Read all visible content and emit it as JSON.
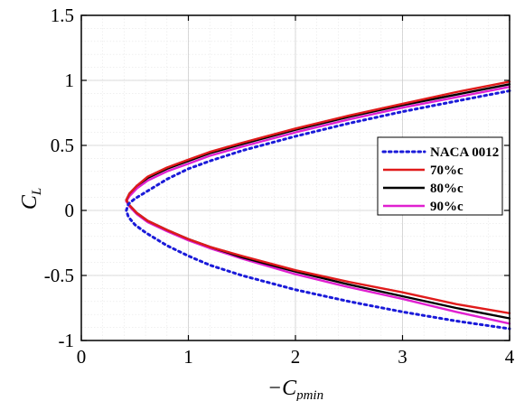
{
  "chart_data": {
    "type": "line",
    "xlabel": "−C",
    "xlabel_sub": "pmin",
    "ylabel": "C",
    "ylabel_sub": "L",
    "xlim": [
      0,
      4
    ],
    "ylim": [
      -1,
      1.5
    ],
    "x_ticks": [
      0,
      1,
      2,
      3,
      4
    ],
    "x_tick_labels": [
      "0",
      "1",
      "2",
      "3",
      "4"
    ],
    "y_ticks": [
      -1,
      -0.5,
      0,
      0.5,
      1,
      1.5
    ],
    "y_tick_labels": [
      "-1",
      "-0.5",
      "0",
      "0.5",
      "1",
      "1.5"
    ],
    "grid": "major and minor",
    "legend_position": "right",
    "series": [
      {
        "name": "NACA 0012",
        "color": "#1a1ad9",
        "style": "dotted",
        "x": [
          4.0,
          3.5,
          3.0,
          2.5,
          2.0,
          1.5,
          1.2,
          1.0,
          0.8,
          0.6,
          0.5,
          0.44,
          0.42,
          0.44,
          0.5,
          0.6,
          0.8,
          1.0,
          1.2,
          1.5,
          2.0,
          2.5,
          3.0,
          3.5,
          4.0
        ],
        "y": [
          0.92,
          0.84,
          0.76,
          0.67,
          0.57,
          0.46,
          0.38,
          0.32,
          0.24,
          0.14,
          0.09,
          0.05,
          0.0,
          -0.05,
          -0.11,
          -0.17,
          -0.27,
          -0.35,
          -0.42,
          -0.5,
          -0.61,
          -0.7,
          -0.78,
          -0.85,
          -0.91
        ]
      },
      {
        "name": "70%c",
        "color": "#e01b1b",
        "style": "solid",
        "x": [
          0.42,
          0.45,
          0.52,
          0.62,
          0.8,
          1.0,
          1.2,
          1.5,
          2.0,
          2.5,
          3.0,
          3.5,
          4.0
        ],
        "y": [
          0.08,
          0.13,
          0.19,
          0.26,
          0.33,
          0.39,
          0.45,
          0.52,
          0.63,
          0.73,
          0.82,
          0.91,
          0.99
        ],
        "x2": [
          0.42,
          0.45,
          0.52,
          0.62,
          0.8,
          1.0,
          1.2,
          1.5,
          2.0,
          2.5,
          3.0,
          3.5,
          4.0
        ],
        "y2": [
          0.08,
          0.04,
          -0.02,
          -0.08,
          -0.15,
          -0.22,
          -0.28,
          -0.35,
          -0.46,
          -0.55,
          -0.63,
          -0.72,
          -0.79
        ]
      },
      {
        "name": "80%c",
        "color": "#000000",
        "style": "solid",
        "x": [
          0.42,
          0.45,
          0.52,
          0.62,
          0.8,
          1.0,
          1.2,
          1.5,
          2.0,
          2.5,
          3.0,
          3.5,
          4.0
        ],
        "y": [
          0.08,
          0.13,
          0.19,
          0.25,
          0.32,
          0.38,
          0.44,
          0.51,
          0.62,
          0.72,
          0.81,
          0.89,
          0.97
        ],
        "x2": [
          0.42,
          0.45,
          0.52,
          0.62,
          0.8,
          1.0,
          1.2,
          1.5,
          2.0,
          2.5,
          3.0,
          3.5,
          4.0
        ],
        "y2": [
          0.08,
          0.04,
          -0.02,
          -0.08,
          -0.15,
          -0.22,
          -0.28,
          -0.36,
          -0.47,
          -0.57,
          -0.66,
          -0.75,
          -0.83
        ]
      },
      {
        "name": "90%c",
        "color": "#e020d0",
        "style": "solid",
        "x": [
          0.42,
          0.45,
          0.52,
          0.62,
          0.8,
          1.0,
          1.2,
          1.5,
          2.0,
          2.5,
          3.0,
          3.5,
          4.0
        ],
        "y": [
          0.07,
          0.11,
          0.17,
          0.23,
          0.3,
          0.36,
          0.42,
          0.49,
          0.6,
          0.7,
          0.79,
          0.87,
          0.95
        ],
        "x2": [
          0.42,
          0.45,
          0.52,
          0.62,
          0.8,
          1.0,
          1.2,
          1.5,
          2.0,
          2.5,
          3.0,
          3.5,
          4.0
        ],
        "y2": [
          0.07,
          0.03,
          -0.03,
          -0.09,
          -0.16,
          -0.23,
          -0.29,
          -0.37,
          -0.49,
          -0.59,
          -0.68,
          -0.78,
          -0.87
        ]
      }
    ]
  }
}
